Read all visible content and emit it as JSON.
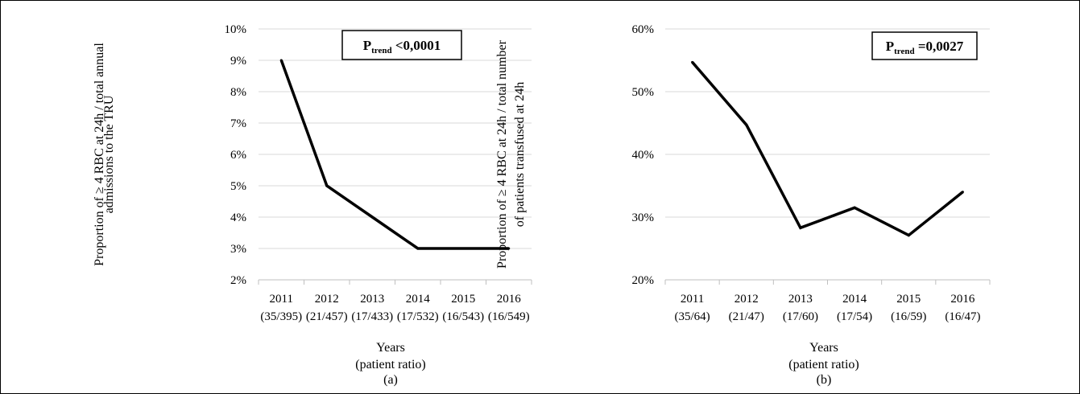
{
  "chart_data": [
    {
      "type": "line",
      "panel_label": "(a)",
      "annotation_main": "P",
      "annotation_sub": "trend",
      "annotation_value": " <0,0001",
      "ylabel_line1": "Proportion of ≥ 4 RBC at 24h / total annual",
      "ylabel_line2": "admissions to the TRU",
      "xlabel_line1": "Years",
      "xlabel_line2": "(patient ratio)",
      "categories": [
        "2011",
        "2012",
        "2013",
        "2014",
        "2015",
        "2016"
      ],
      "ratios": [
        "(35/395)",
        "(21/457)",
        "(17/433)",
        "(17/532)",
        "(16/543)",
        "(16/549)"
      ],
      "values": [
        9,
        5,
        4,
        3,
        3,
        3
      ],
      "yticks": [
        2,
        3,
        4,
        5,
        6,
        7,
        8,
        9,
        10
      ],
      "ytick_labels": [
        "2%",
        "3%",
        "4%",
        "5%",
        "6%",
        "7%",
        "8%",
        "9%",
        "10%"
      ],
      "ylim": [
        2,
        10
      ],
      "grid": true,
      "legend": false,
      "line_color": "#000000",
      "grid_color": "#d9d9d9"
    },
    {
      "type": "line",
      "panel_label": "(b)",
      "annotation_main": "P",
      "annotation_sub": "trend",
      "annotation_value": " =0,0027",
      "ylabel_line1": "Proportion of ≥ 4 RBC at 24h / total number",
      "ylabel_line2": "of patients transfused at 24h",
      "xlabel_line1": "Years",
      "xlabel_line2": "(patient ratio)",
      "categories": [
        "2011",
        "2012",
        "2013",
        "2014",
        "2015",
        "2016"
      ],
      "ratios": [
        "(35/64)",
        "(21/47)",
        "(17/60)",
        "(17/54)",
        "(16/59)",
        "(16/47)"
      ],
      "values": [
        54.7,
        44.7,
        28.3,
        31.5,
        27.1,
        34.0
      ],
      "yticks": [
        20,
        30,
        40,
        50,
        60
      ],
      "ytick_labels": [
        "20%",
        "30%",
        "40%",
        "50%",
        "60%"
      ],
      "ylim": [
        20,
        60
      ],
      "grid": true,
      "legend": false,
      "line_color": "#000000",
      "grid_color": "#d9d9d9"
    }
  ]
}
